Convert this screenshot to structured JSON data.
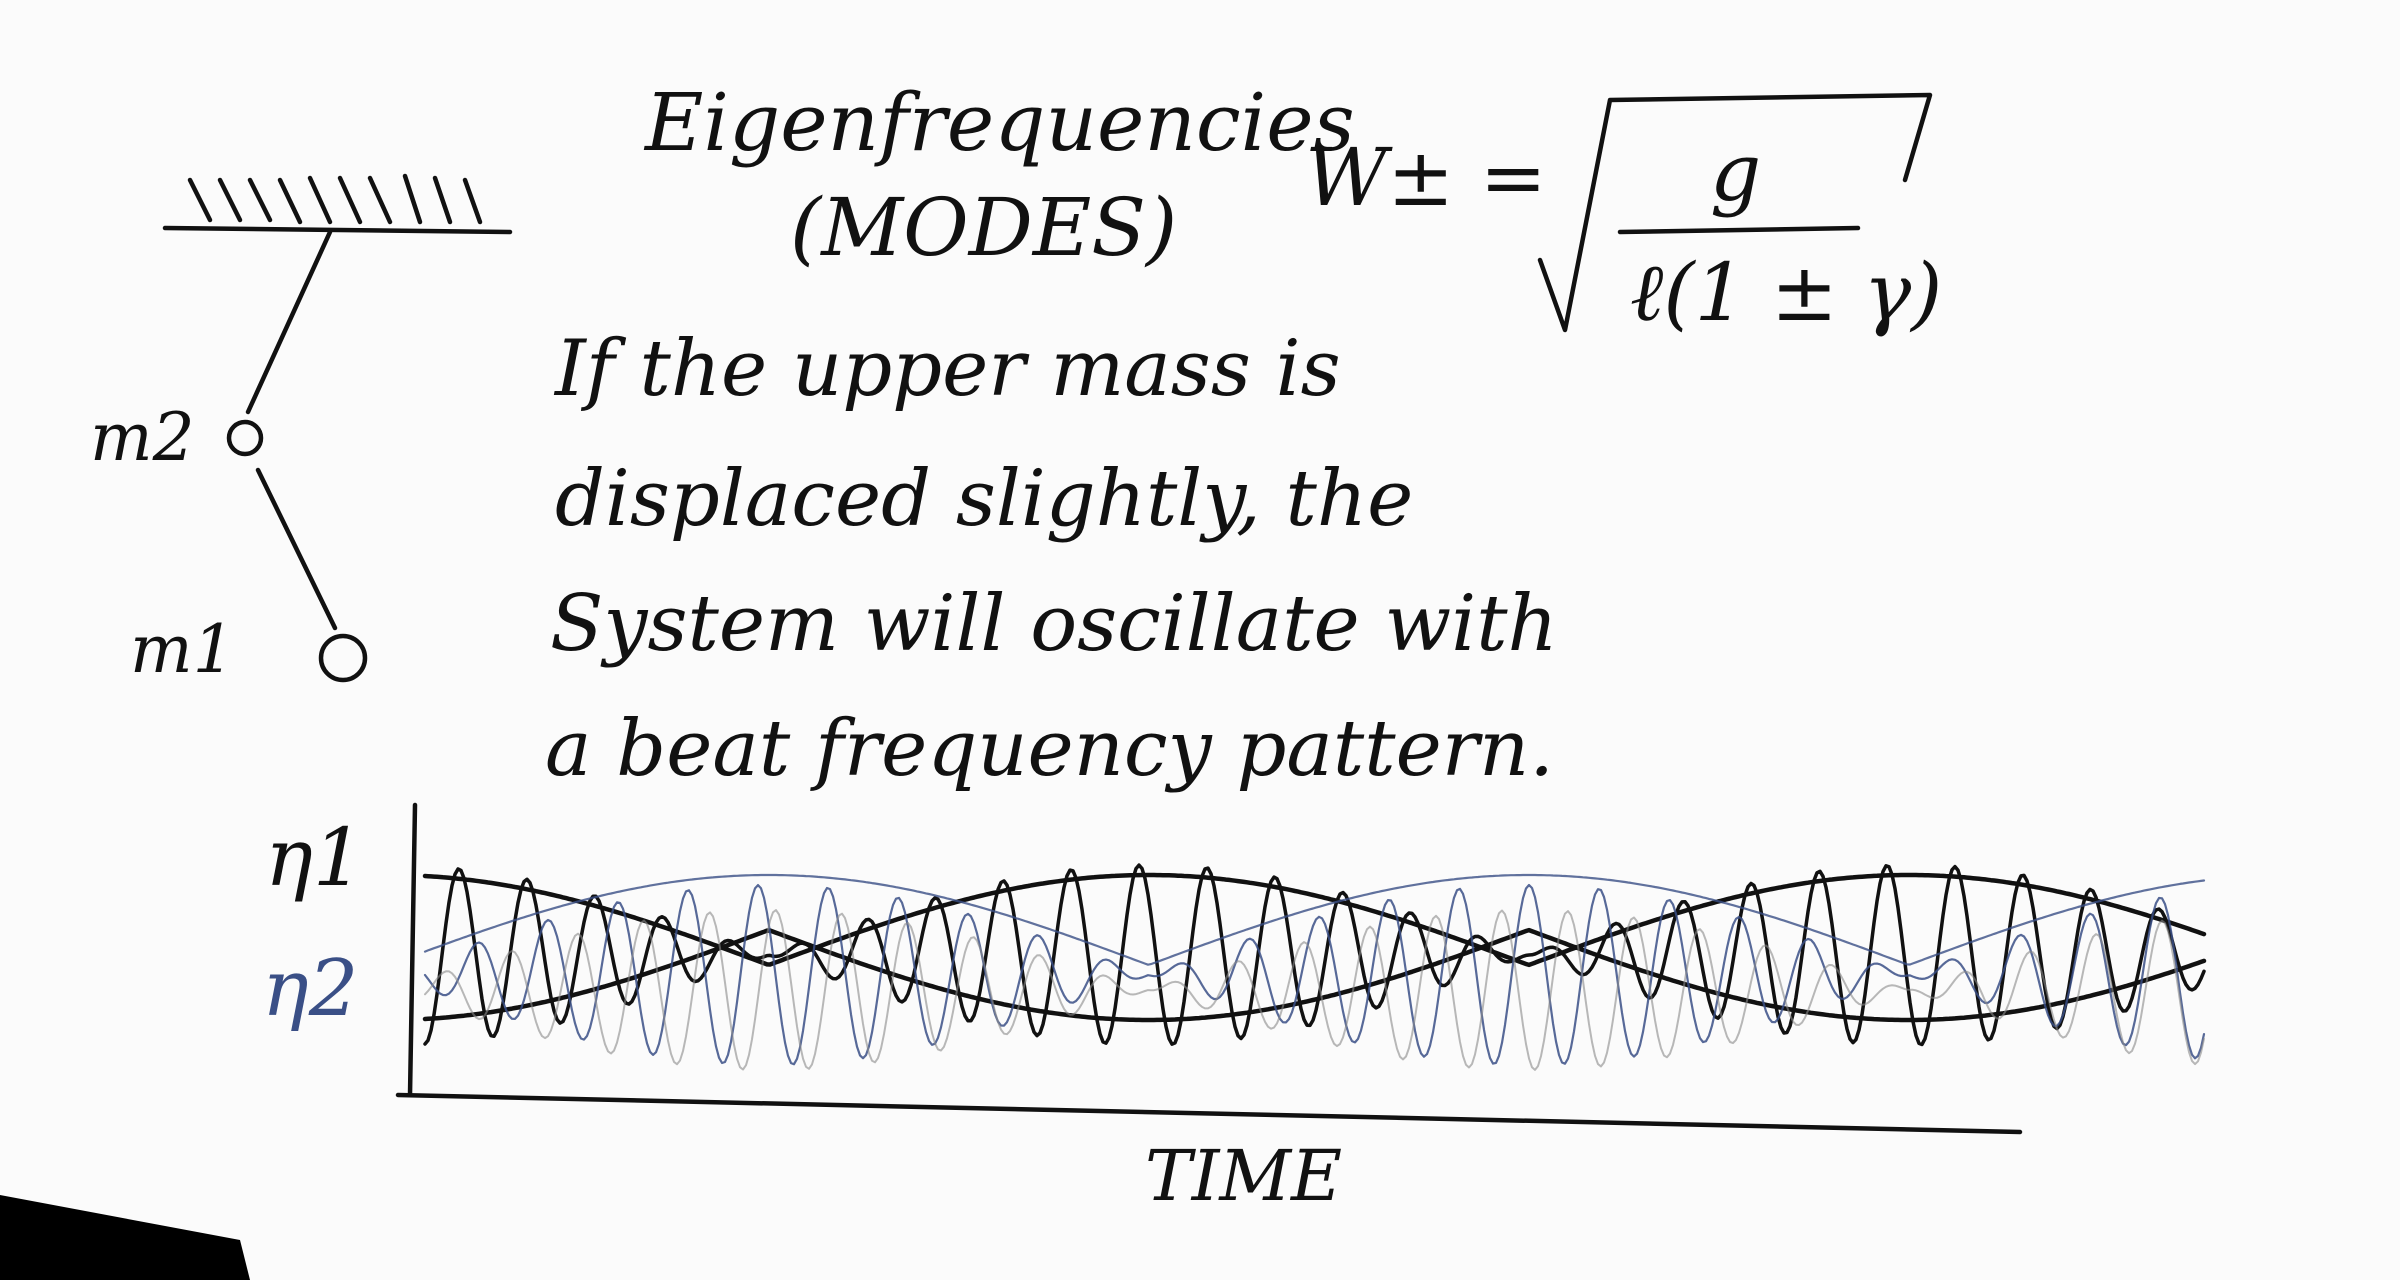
{
  "title": {
    "line1": "Eigenfrequencies",
    "line2": "(MODES)"
  },
  "formula": {
    "lhs": "W± =",
    "numerator": "g",
    "denominator": "ℓ(1 ± γ)"
  },
  "pendulum": {
    "upper_mass_label": "m2",
    "lower_mass_label": "m1"
  },
  "description": {
    "lines": [
      "If the upper mass is",
      "displaced slightly, the",
      "System will oscillate with",
      "a beat frequency pattern."
    ]
  },
  "plot": {
    "y_label_1": "η1",
    "y_label_2": "η2",
    "x_label": "TIME"
  },
  "colors": {
    "ink": "#111111",
    "blue_ink": "#3a4f86",
    "grey_ink": "#8a8a8a"
  }
}
